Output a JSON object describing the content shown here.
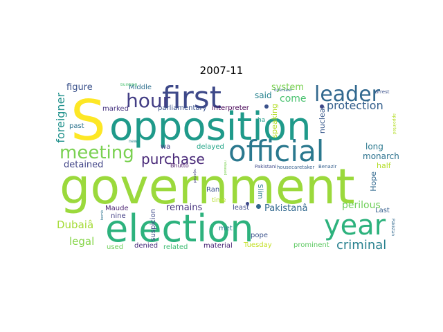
{
  "title": "2007-11",
  "words": [
    {
      "text": "government",
      "color": "#9bd93c"
    },
    {
      "text": "election",
      "color": "#2db27d"
    },
    {
      "text": "opposition",
      "color": "#1f9a8a"
    },
    {
      "text": "S",
      "color": "#fde725"
    },
    {
      "text": "first",
      "color": "#3e4989"
    },
    {
      "text": "official",
      "color": "#2a788e"
    },
    {
      "text": "year",
      "color": "#2db27d"
    },
    {
      "text": "leader",
      "color": "#31688e"
    },
    {
      "text": "hour",
      "color": "#433e85"
    },
    {
      "text": "meeting",
      "color": "#7ad151"
    },
    {
      "text": "purchase",
      "color": "#482878"
    },
    {
      "text": "protection",
      "color": "#35608d"
    },
    {
      "text": "criminal",
      "color": "#27808e"
    },
    {
      "text": "foreigner",
      "color": "#21918c"
    },
    {
      "text": "Dubaiâ",
      "color": "#a5db36"
    },
    {
      "text": "legal",
      "color": "#86d549"
    },
    {
      "text": "remains",
      "color": "#46327e"
    },
    {
      "text": "perilous",
      "color": "#6ece58"
    },
    {
      "text": "Pakistanâ",
      "color": "#31688e"
    },
    {
      "text": "figure",
      "color": "#3b528b"
    },
    {
      "text": "detained",
      "color": "#414487"
    },
    {
      "text": "come",
      "color": "#48c16e"
    },
    {
      "text": "system",
      "color": "#7ad151"
    },
    {
      "text": "said",
      "color": "#26828e"
    },
    {
      "text": "speaking",
      "color": "#b5de2b"
    },
    {
      "text": "nuclear",
      "color": "#38598c"
    },
    {
      "text": "monarch",
      "color": "#2c728e"
    },
    {
      "text": "long",
      "color": "#2a788e"
    },
    {
      "text": "half",
      "color": "#b5de2b"
    },
    {
      "text": "Hope",
      "color": "#31688e"
    },
    {
      "text": "Last",
      "color": "#355f8d"
    },
    {
      "text": "prominent",
      "color": "#5ec962"
    },
    {
      "text": "Tuesday",
      "color": "#c2df23"
    },
    {
      "text": "pope",
      "color": "#3b528b"
    },
    {
      "text": "met",
      "color": "#287d8e"
    },
    {
      "text": "material",
      "color": "#482475"
    },
    {
      "text": "related",
      "color": "#3fbc73"
    },
    {
      "text": "denied",
      "color": "#472d7b"
    },
    {
      "text": "used",
      "color": "#6ece58"
    },
    {
      "text": "suspicion",
      "color": "#3e4989"
    },
    {
      "text": "nine",
      "color": "#433e85"
    },
    {
      "text": "Maude",
      "color": "#481f70"
    },
    {
      "text": "past",
      "color": "#2c728e"
    },
    {
      "text": "marked",
      "color": "#46337f"
    },
    {
      "text": "parliamentary",
      "color": "#3b528b"
    },
    {
      "text": "interpreter",
      "color": "#440154"
    },
    {
      "text": "Middle",
      "color": "#2e6f8e"
    },
    {
      "text": "building",
      "color": "#48c16e"
    },
    {
      "text": "delayed",
      "color": "#20a486"
    },
    {
      "text": "Bhutto",
      "color": "#471365"
    },
    {
      "text": "Pakistani",
      "color": "#3e4989"
    },
    {
      "text": "housecaretaker",
      "color": "#355f8d"
    },
    {
      "text": "Benazir",
      "color": "#355f8d"
    },
    {
      "text": "Ran",
      "color": "#3b528b"
    },
    {
      "text": "Slim",
      "color": "#2a788e"
    },
    {
      "text": "least",
      "color": "#3e4989"
    },
    {
      "text": "time",
      "color": "#b5de2b"
    },
    {
      "text": "ha",
      "color": "#1f9e89"
    },
    {
      "text": "wa",
      "color": "#443983"
    },
    {
      "text": "new",
      "color": "#26828e"
    },
    {
      "text": "overseer",
      "color": "#31688e"
    },
    {
      "text": "arrest",
      "color": "#3b528b"
    },
    {
      "text": "appointed",
      "color": "#b5de2b"
    },
    {
      "text": "released",
      "color": "#7ad151"
    },
    {
      "text": "rejected",
      "color": "#433e85"
    },
    {
      "text": "bomb",
      "color": "#2c728e"
    },
    {
      "text": "Pakistan",
      "color": "#31688e"
    }
  ]
}
